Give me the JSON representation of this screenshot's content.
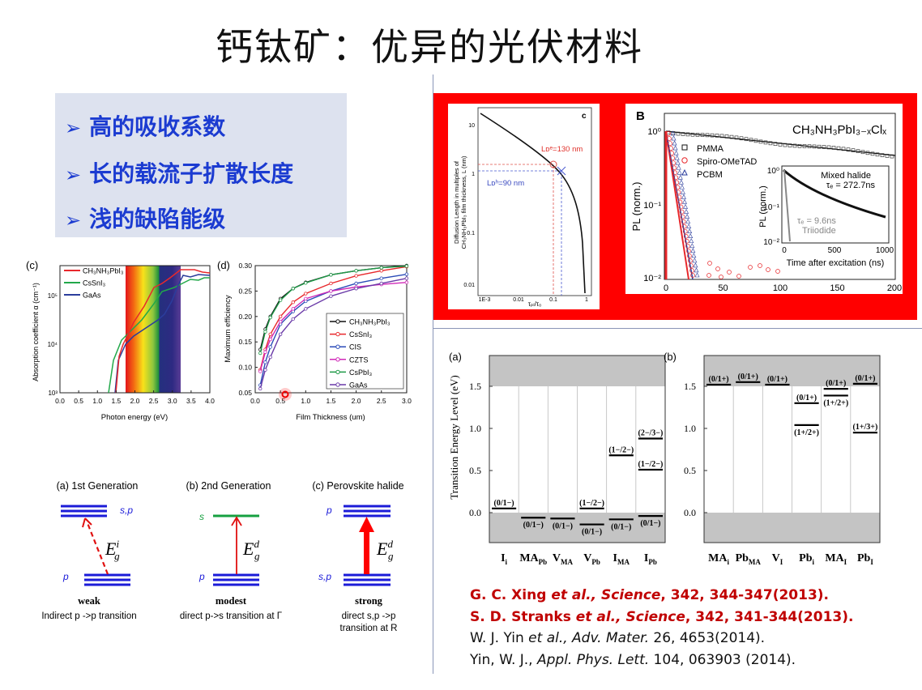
{
  "title": "钙钛矿：优异的光伏材料",
  "bullets": [
    "高的吸收系数",
    "长的载流子扩散长度",
    "浅的缺陷能级"
  ],
  "bullet_icon": "arrow-bullet-icon",
  "fig_absorption": {
    "panel": "(c)",
    "ylabel": "Absorption coefficient α (cm⁻¹)",
    "xlabel": "Photon energy (eV)",
    "xticks": [
      "0.0",
      "0.5",
      "1.0",
      "1.5",
      "2.0",
      "2.5",
      "3.0",
      "3.5",
      "4.0"
    ],
    "yticks": [
      "10³",
      "10⁴",
      "10⁵"
    ],
    "legend": [
      {
        "name": "CH₃NH₃PbI₃",
        "color": "#e8282c"
      },
      {
        "name": "CsSnI₃",
        "color": "#22a84a"
      },
      {
        "name": "GaAs",
        "color": "#2b3d9c"
      }
    ]
  },
  "fig_efficiency": {
    "panel": "(d)",
    "ylabel": "Maximum efficiency",
    "xlabel": "Film Thickness (um)",
    "xticks": [
      "0.0",
      "0.5",
      "1.0",
      "1.5",
      "2.0",
      "2.5",
      "3.0"
    ],
    "yticks": [
      "0.05",
      "0.10",
      "0.15",
      "0.20",
      "0.25",
      "0.30"
    ],
    "x": [
      0.1,
      0.2,
      0.3,
      0.5,
      0.75,
      1.0,
      1.5,
      2.0,
      2.5,
      3.0
    ],
    "series": [
      {
        "name": "CH₃NH₃PbI₃",
        "color": "#111111",
        "values": [
          0.135,
          0.175,
          0.2,
          0.235,
          0.255,
          0.267,
          0.282,
          0.29,
          0.296,
          0.3
        ]
      },
      {
        "name": "CsSnI₃",
        "color": "#e8282c",
        "values": [
          0.095,
          0.135,
          0.165,
          0.2,
          0.228,
          0.245,
          0.265,
          0.28,
          0.29,
          0.298
        ]
      },
      {
        "name": "CIS",
        "color": "#2b4bb8",
        "values": [
          0.065,
          0.11,
          0.14,
          0.185,
          0.21,
          0.23,
          0.25,
          0.265,
          0.275,
          0.283
        ]
      },
      {
        "name": "CZTS",
        "color": "#d02ab8",
        "values": [
          0.092,
          0.13,
          0.155,
          0.19,
          0.215,
          0.235,
          0.25,
          0.258,
          0.263,
          0.267
        ]
      },
      {
        "name": "CsPbI₃",
        "color": "#1f9a48",
        "values": [
          0.128,
          0.17,
          0.198,
          0.232,
          0.255,
          0.266,
          0.282,
          0.29,
          0.296,
          0.299
        ]
      },
      {
        "name": "GaAs",
        "color": "#6a3aa8",
        "values": [
          0.058,
          0.095,
          0.12,
          0.165,
          0.195,
          0.215,
          0.24,
          0.255,
          0.265,
          0.275
        ]
      }
    ]
  },
  "fig_diffusion": {
    "panel": "c",
    "ylabel1": "Diffusion Length in multiples of",
    "ylabel2": "CH₃NH₃PbI₃ film thickness, L (nm)",
    "xlabel": "τₚₗ/τ₀",
    "xticks": [
      "1E-3",
      "0.01",
      "0.1",
      "1"
    ],
    "yticks": [
      "10",
      "1",
      "0.1",
      "0.01"
    ],
    "le_label": "Lᴅᵉ=130 nm",
    "lh_label": "Lᴅʰ=90 nm"
  },
  "fig_pl": {
    "panel": "B",
    "compound": "CH₃NH₃PbI₃₋ₓClₓ",
    "ylabel": "PL (norm.)",
    "yticks": [
      "10⁰",
      "10⁻¹",
      "10⁻²"
    ],
    "xticks": [
      "0",
      "50",
      "100",
      "150",
      "200"
    ],
    "legend": [
      "PMMA",
      "Spiro-OMeTAD",
      "PCBM"
    ],
    "inset": {
      "ylabel": "PL (norm.)",
      "xlabel": "Time after excitation (ns)",
      "xticks": [
        "0",
        "500",
        "1000"
      ],
      "yticks": [
        "10⁰",
        "10⁻¹",
        "10⁻²"
      ],
      "mixed": "Mixed halide",
      "mixed_tau": "τₑ = 272.7ns",
      "tri_tau": "τₑ = 9.6ns",
      "tri": "Triiodide"
    }
  },
  "fig_defects": {
    "ylabel": "Transition Energy Level (eV)",
    "yticks": [
      "1.5",
      "1.0",
      "0.5",
      "0.0"
    ],
    "panels": [
      {
        "panel": "(a)",
        "columns": [
          {
            "main": "I",
            "sub": "i",
            "levels": [
              {
                "E": 0.05,
                "label": "(0/1−)",
                "pos": "above"
              }
            ]
          },
          {
            "main": "MA",
            "sub": "Pb",
            "levels": [
              {
                "E": -0.06,
                "label": "(0/1−)",
                "pos": "below"
              }
            ]
          },
          {
            "main": "V",
            "sub": "MA",
            "levels": [
              {
                "E": -0.07,
                "label": "(0/1−)",
                "pos": "below"
              }
            ]
          },
          {
            "main": "V",
            "sub": "Pb",
            "levels": [
              {
                "E": 0.05,
                "label": "(1−/2−)",
                "pos": "above"
              },
              {
                "E": -0.14,
                "label": "(0/1−)",
                "pos": "below"
              }
            ]
          },
          {
            "main": "I",
            "sub": "MA",
            "levels": [
              {
                "E": 0.68,
                "label": "(1−/2−)",
                "pos": "above"
              },
              {
                "E": -0.08,
                "label": "(0/1−)",
                "pos": "below"
              }
            ]
          },
          {
            "main": "I",
            "sub": "Pb",
            "levels": [
              {
                "E": 0.88,
                "label": "(2−/3−)",
                "pos": "above"
              },
              {
                "E": 0.51,
                "label": "(1−/2−)",
                "pos": "above"
              },
              {
                "E": -0.04,
                "label": "(0/1−)",
                "pos": "below"
              }
            ]
          }
        ]
      },
      {
        "panel": "(b)",
        "columns": [
          {
            "main": "MA",
            "sub": "i",
            "levels": [
              {
                "E": 1.52,
                "label": "(0/1+)",
                "pos": "above"
              }
            ]
          },
          {
            "main": "Pb",
            "sub": "MA",
            "levels": [
              {
                "E": 1.55,
                "label": "(0/1+)",
                "pos": "above"
              }
            ]
          },
          {
            "main": "V",
            "sub": "I",
            "levels": [
              {
                "E": 1.52,
                "label": "(0/1+)",
                "pos": "above"
              }
            ]
          },
          {
            "main": "Pb",
            "sub": "i",
            "levels": [
              {
                "E": 1.3,
                "label": "(0/1+)",
                "pos": "above"
              },
              {
                "E": 1.04,
                "label": "(1+/2+)",
                "pos": "below"
              }
            ]
          },
          {
            "main": "MA",
            "sub": "I",
            "levels": [
              {
                "E": 1.47,
                "label": "(0/1+)",
                "pos": "above"
              },
              {
                "E": 1.39,
                "label": "(1+/2+)",
                "pos": "below"
              }
            ]
          },
          {
            "main": "Pb",
            "sub": "I",
            "levels": [
              {
                "E": 1.53,
                "label": "(0/1+)",
                "pos": "above"
              },
              {
                "E": 0.95,
                "label": "(1+/3+)",
                "pos": "above"
              }
            ]
          }
        ]
      }
    ]
  },
  "bands": [
    {
      "title": "(a) 1st Generation",
      "top": "s,p",
      "bottom": "p",
      "gap_sup": "i",
      "strength": "weak",
      "desc1": "Indirect p ->p transition",
      "desc2": ""
    },
    {
      "title": "(b) 2nd Generation",
      "top": "s",
      "bottom": "p",
      "gap_sup": "d",
      "strength": "modest",
      "desc1": "direct p->s transition at Γ",
      "desc2": ""
    },
    {
      "title": "(c) Perovskite halide",
      "top": "p",
      "bottom": "s,p",
      "gap_sup": "d",
      "strength": "strong",
      "desc1": "direct s,p ->p",
      "desc2": "transition at R"
    }
  ],
  "gap_symbol": {
    "main": "E",
    "sub": "g"
  },
  "references": [
    {
      "authors": "G. C. Xing ",
      "etal": "et al.",
      "journal": ", Science",
      "rest": ", 342, 344-347(2013).",
      "style": "red"
    },
    {
      "authors": "S. D. Stranks ",
      "etal": "et al.",
      "journal": ", Science",
      "rest": ", 342, 341-344(2013).",
      "style": "red"
    },
    {
      "authors": "W. J. Yin ",
      "etal": "et al.",
      "journal": ", Adv. Mater.",
      "rest": " 26, 4653(2014).",
      "style": "black"
    },
    {
      "authors": "Yin, W. J., ",
      "etal": "",
      "journal": "Appl. Phys. Lett.",
      "rest": " 104, 063903 (2014).",
      "style": "black"
    }
  ],
  "colors": {
    "accent_blue": "#1b3bd1",
    "highlight_red": "#ff0000",
    "ref_red": "#c00000"
  }
}
